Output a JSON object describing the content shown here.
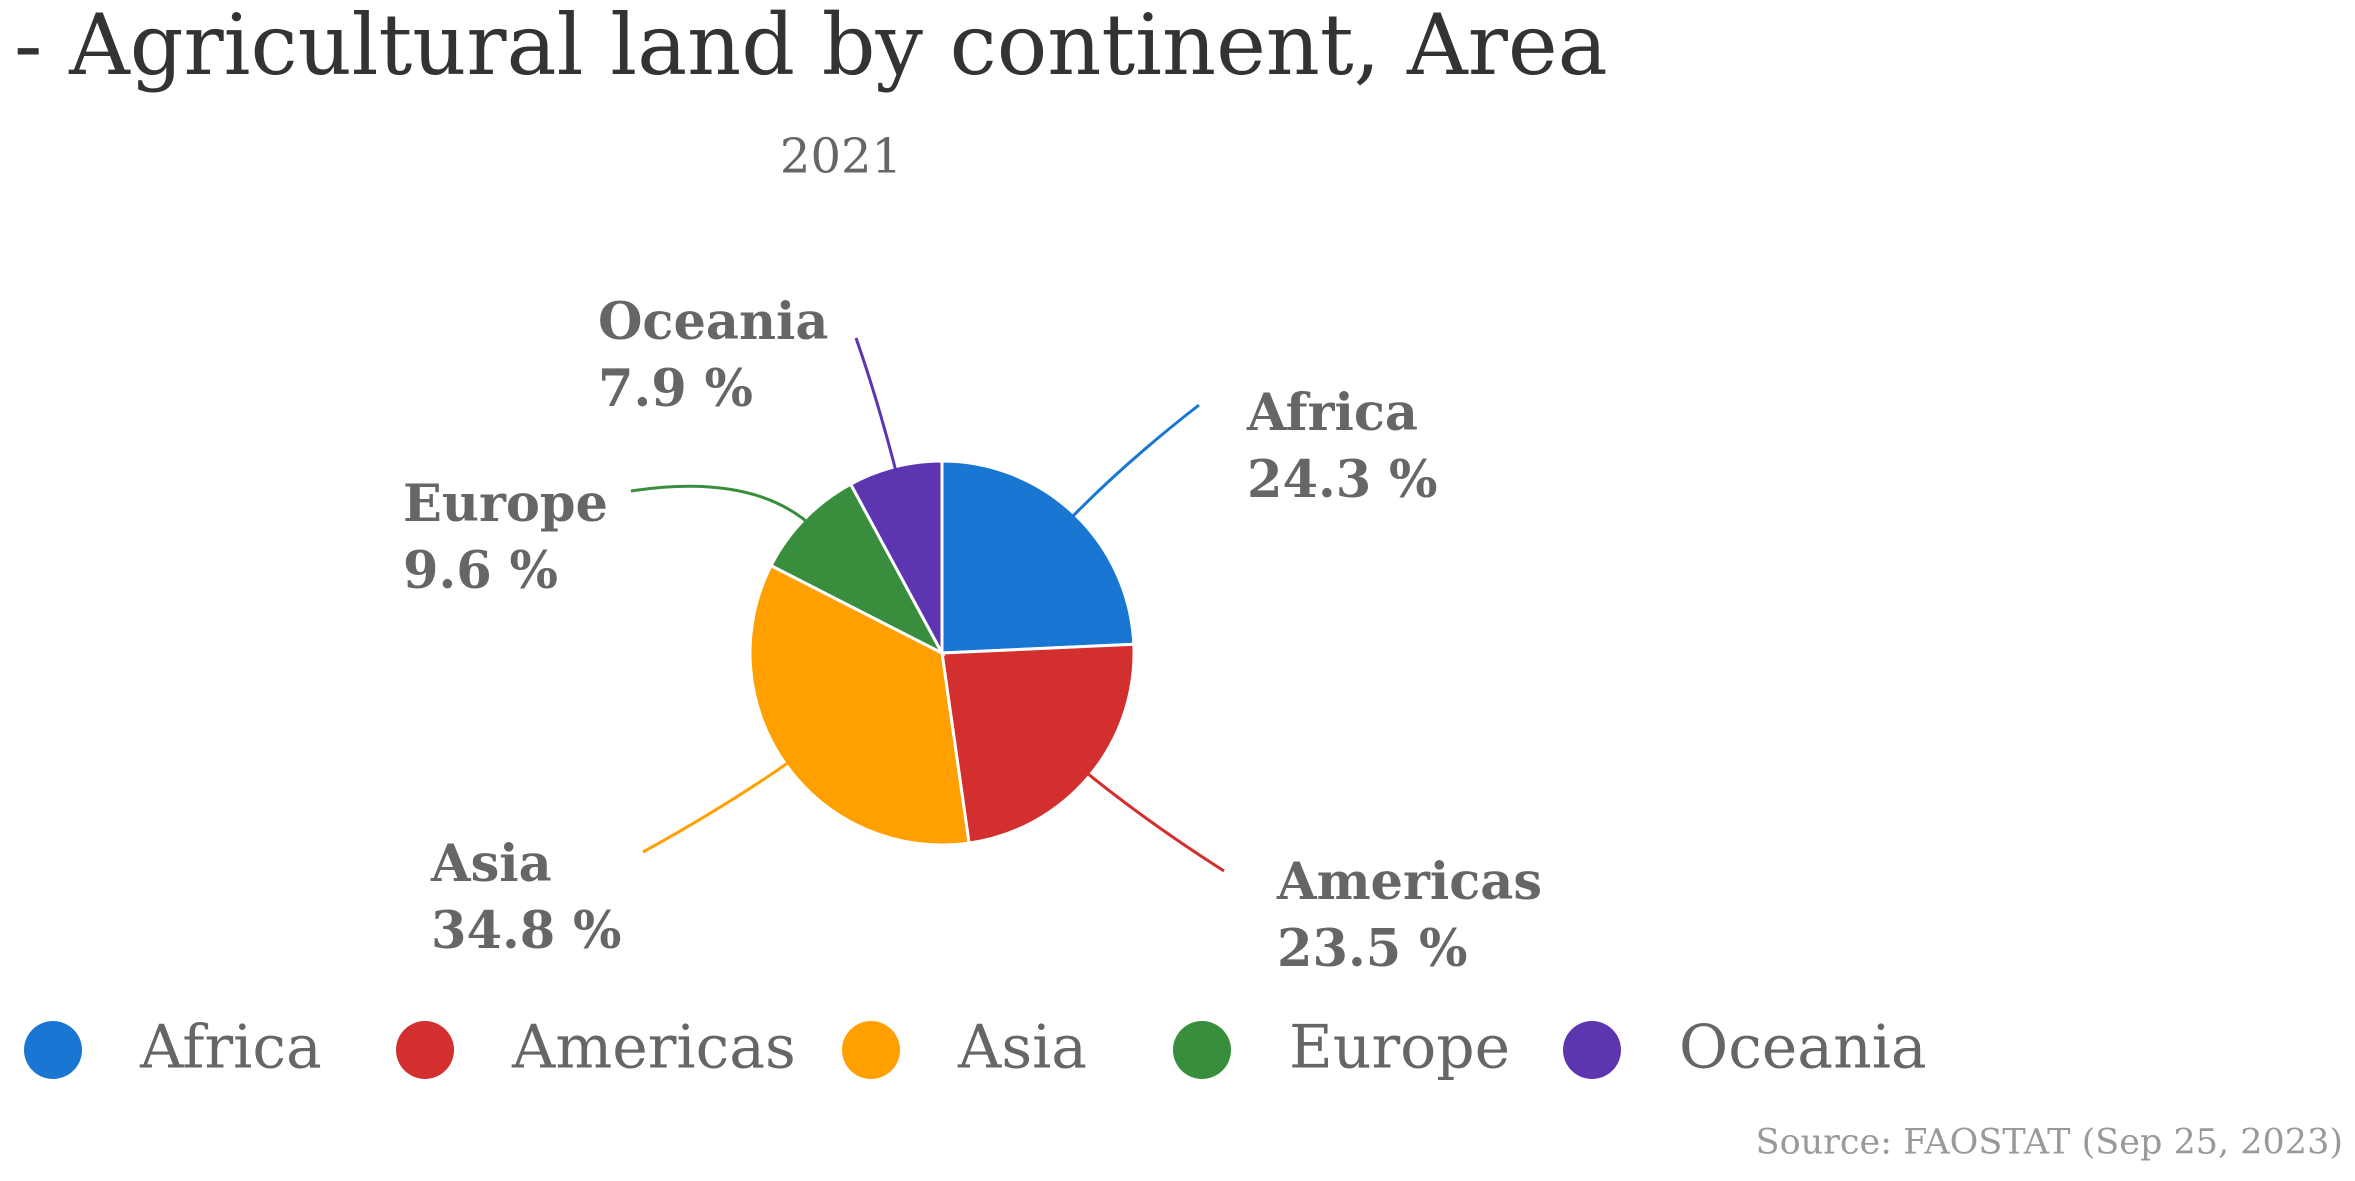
{
  "chart_data": {
    "type": "pie",
    "title": "- Agricultural land by continent, Area",
    "subtitle": "2021",
    "source": "Source: FAOSTAT (Sep 25, 2023)",
    "categories": [
      "Africa",
      "Americas",
      "Asia",
      "Europe",
      "Oceania"
    ],
    "values": [
      24.3,
      23.5,
      34.8,
      9.6,
      7.9
    ],
    "value_labels": [
      "24.3 %",
      "23.5 %",
      "34.8 %",
      "9.6 %",
      "7.9 %"
    ],
    "colors": [
      "#1976d2",
      "#d32f2f",
      "#ffa000",
      "#388e3c",
      "#5e35b1"
    ]
  }
}
